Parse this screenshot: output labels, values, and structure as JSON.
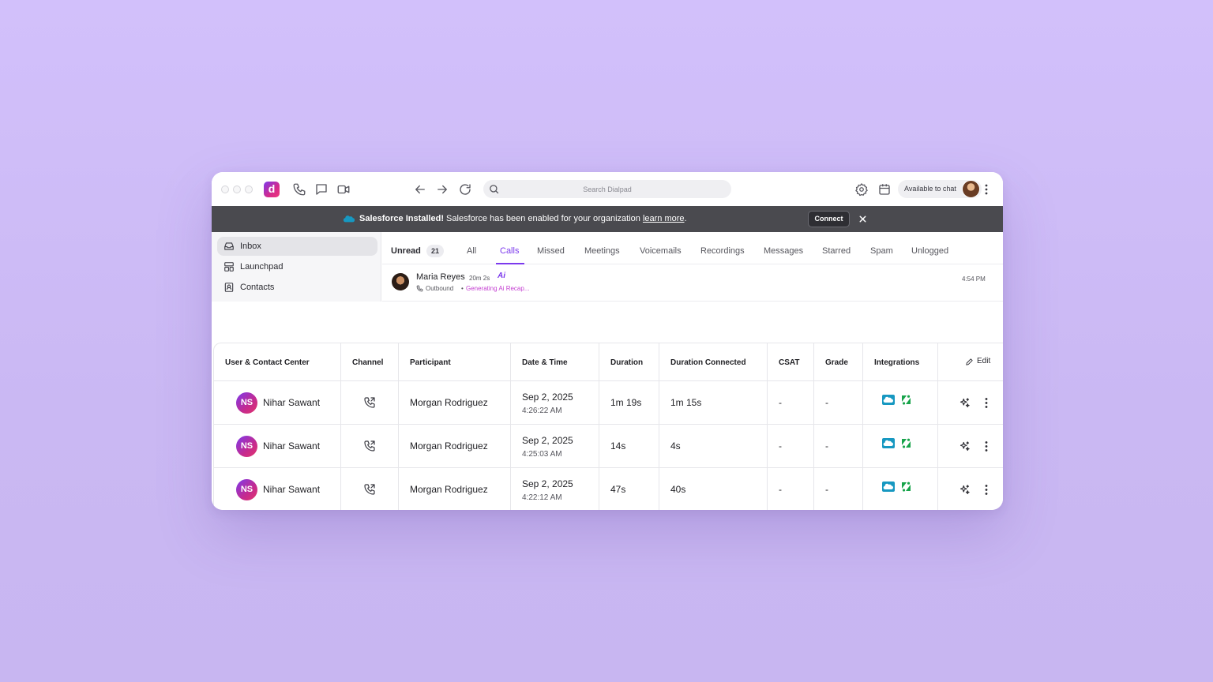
{
  "topbar": {
    "search_placeholder": "Search Dialpad",
    "status": "Available to chat",
    "logo_letter": "d"
  },
  "banner": {
    "title": "Salesforce Installed!",
    "text": " Salesforce has been enabled for your organization ",
    "link": "learn more",
    "period": ".",
    "connect": "Connect",
    "close": "×"
  },
  "sidebar": {
    "items": [
      {
        "label": "Inbox",
        "icon": "inbox-icon"
      },
      {
        "label": "Launchpad",
        "icon": "launchpad-icon"
      },
      {
        "label": "Contacts",
        "icon": "contacts-icon"
      }
    ]
  },
  "tabs": {
    "unread_label": "Unread",
    "unread_count": "21",
    "items": [
      "All",
      "Calls",
      "Missed",
      "Meetings",
      "Voicemails",
      "Recordings",
      "Messages",
      "Starred",
      "Spam",
      "Unlogged"
    ],
    "active": "Calls"
  },
  "call_item": {
    "name": "Maria Reyes",
    "duration": "20m 2s",
    "ai_badge": "Ai",
    "direction": "Outbound",
    "separator": "•",
    "status": "Generating Ai Recap...",
    "time": "4:54 PM"
  },
  "table": {
    "headers": [
      "User & Contact Center",
      "Channel",
      "Participant",
      "Date & Time",
      "Duration",
      "Duration Connected",
      "CSAT",
      "Grade",
      "Integrations"
    ],
    "edit_label": "Edit",
    "rows": [
      {
        "initials": "NS",
        "user": "Nihar Sawant",
        "participant": "Morgan Rodriguez",
        "date": "Sep 2, 2025",
        "time": "4:26:22 AM",
        "duration": "1m 19s",
        "connected": "1m 15s",
        "csat": "-",
        "grade": "-"
      },
      {
        "initials": "NS",
        "user": "Nihar Sawant",
        "participant": "Morgan Rodriguez",
        "date": "Sep 2, 2025",
        "time": "4:25:03 AM",
        "duration": "14s",
        "connected": "4s",
        "csat": "-",
        "grade": "-"
      },
      {
        "initials": "NS",
        "user": "Nihar Sawant",
        "participant": "Morgan Rodriguez",
        "date": "Sep 2, 2025",
        "time": "4:22:12 AM",
        "duration": "47s",
        "connected": "40s",
        "csat": "-",
        "grade": "-"
      }
    ]
  },
  "colors": {
    "background": "#d2c0fb",
    "accent": "#7c3aed",
    "banner": "#4a4a4f",
    "salesforce": "#1798c1",
    "zendesk": "#03363d"
  }
}
